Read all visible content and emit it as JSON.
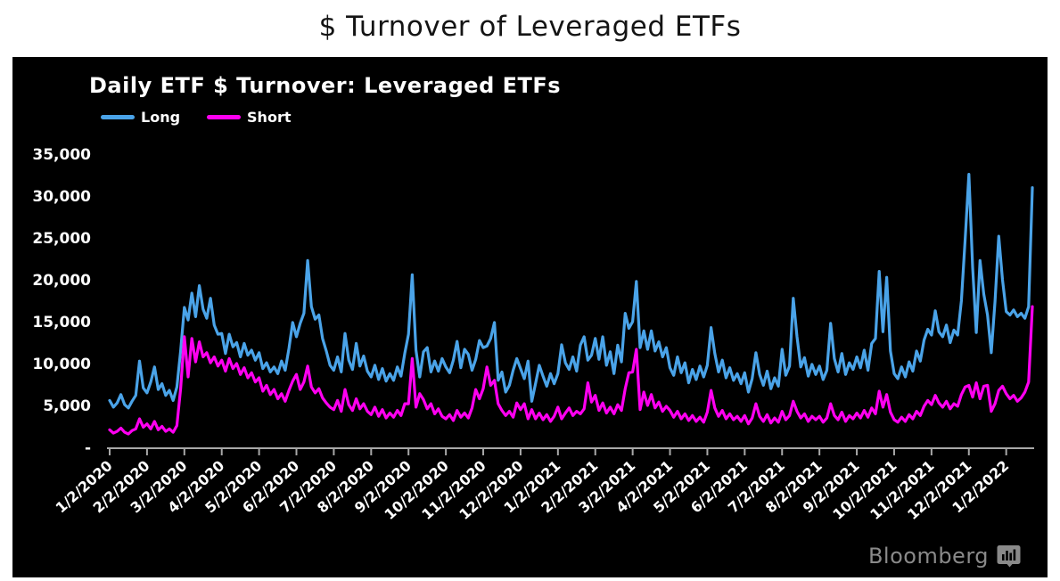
{
  "page": {
    "title": "$ Turnover of Leveraged ETFs"
  },
  "panel": {
    "title": "Daily ETF $ Turnover: Leveraged ETFs",
    "background_color": "#000000",
    "axis_color": "#a8a8a8",
    "label_color": "#ffffff",
    "brand": {
      "name": "Bloomberg",
      "icon": "bloomberg-chart-bubble-icon",
      "color": "#8a8a8a"
    }
  },
  "chart_data": {
    "type": "line",
    "title": "Daily ETF $ Turnover: Leveraged ETFs",
    "legend_position": "top-left",
    "grid": false,
    "ylim": [
      0,
      35000
    ],
    "y_ticks": {
      "values": [
        35000,
        30000,
        25000,
        20000,
        15000,
        10000,
        5000,
        0
      ],
      "labels": [
        "35,000",
        "30,000",
        "25,000",
        "20,000",
        "15,000",
        "10,000",
        "5,000",
        "-"
      ]
    },
    "x_tick_labels": [
      "1/2/2020",
      "2/2/2020",
      "3/2/2020",
      "4/2/2020",
      "5/2/2020",
      "6/2/2020",
      "7/2/2020",
      "8/2/2020",
      "9/2/2020",
      "10/2/2020",
      "11/2/2020",
      "12/2/2020",
      "1/2/2021",
      "2/2/2021",
      "3/2/2021",
      "4/2/2021",
      "5/2/2021",
      "6/2/2021",
      "7/2/2021",
      "8/2/2021",
      "9/2/2021",
      "10/2/2021",
      "11/2/2021",
      "12/2/2021",
      "1/2/2022"
    ],
    "points_per_tick": 10,
    "series": [
      {
        "name": "Long",
        "color": "#4aa3e8",
        "values": [
          5600,
          4800,
          5300,
          6300,
          5100,
          4700,
          5500,
          6200,
          10300,
          7100,
          6500,
          7800,
          9600,
          6900,
          7600,
          6200,
          6800,
          5600,
          7200,
          11500,
          16700,
          15200,
          18400,
          15600,
          19300,
          16500,
          15400,
          17800,
          14600,
          13500,
          13600,
          11200,
          13500,
          12000,
          12500,
          10800,
          12400,
          11000,
          11600,
          10400,
          11300,
          9400,
          10100,
          9000,
          9600,
          8800,
          10300,
          9200,
          11800,
          14900,
          13200,
          14800,
          16000,
          22300,
          16800,
          15300,
          15800,
          13000,
          11500,
          9800,
          9200,
          10800,
          9000,
          13600,
          10400,
          9300,
          12400,
          9700,
          10900,
          9100,
          8400,
          9800,
          8100,
          9400,
          7900,
          8800,
          8000,
          9600,
          8500,
          11200,
          13500,
          20600,
          11600,
          8400,
          11400,
          11900,
          9000,
          10300,
          9100,
          10600,
          9600,
          8900,
          10400,
          12650,
          9500,
          11700,
          11100,
          9200,
          10500,
          12750,
          11900,
          12100,
          13000,
          14900,
          8000,
          9000,
          6600,
          7400,
          9200,
          10600,
          9400,
          8200,
          10300,
          5500,
          7600,
          9800,
          8500,
          7300,
          8800,
          7600,
          8800,
          12250,
          10100,
          9300,
          10800,
          9100,
          12200,
          13200,
          10400,
          11000,
          13000,
          10500,
          13200,
          9800,
          11400,
          8800,
          12200,
          10200,
          16000,
          14200,
          15000,
          19800,
          11900,
          13900,
          11700,
          13900,
          11500,
          12600,
          10800,
          11900,
          9500,
          8600,
          10800,
          8900,
          10100,
          7700,
          9300,
          8100,
          9700,
          8400,
          9800,
          14300,
          11200,
          9000,
          10400,
          8300,
          9500,
          8000,
          8800,
          7600,
          8900,
          6600,
          8200,
          11300,
          8700,
          7400,
          9100,
          7000,
          8300,
          7300,
          11700,
          8600,
          9700,
          17800,
          13200,
          9600,
          10700,
          8500,
          9900,
          8700,
          9700,
          8100,
          9200,
          14800,
          10600,
          9000,
          11200,
          8700,
          10100,
          9300,
          10800,
          9500,
          11600,
          9200,
          12400,
          13000,
          21000,
          13800,
          20300,
          11500,
          8800,
          8200,
          9600,
          8400,
          10200,
          9100,
          11500,
          10300,
          12800,
          14100,
          13400,
          16300,
          13800,
          13200,
          14600,
          12500,
          14000,
          13400,
          17500,
          24800,
          32600,
          21500,
          13700,
          22300,
          18300,
          15800,
          11300,
          17400,
          25200,
          20000,
          16200,
          15800,
          16400,
          15600,
          16000,
          15400,
          16800,
          31000
        ]
      },
      {
        "name": "Short",
        "color": "#ff00f0",
        "values": [
          2100,
          1700,
          1900,
          2300,
          1800,
          1600,
          2000,
          2200,
          3400,
          2400,
          2800,
          2200,
          3100,
          2100,
          2500,
          1900,
          2200,
          1800,
          2600,
          7000,
          13200,
          8400,
          13000,
          10200,
          12600,
          10800,
          11300,
          10100,
          10800,
          9700,
          10400,
          9100,
          10600,
          9400,
          10000,
          8700,
          9500,
          8300,
          8900,
          7800,
          8300,
          6700,
          7400,
          6300,
          6900,
          5800,
          6400,
          5500,
          6800,
          7900,
          8700,
          6900,
          7800,
          9700,
          7200,
          6500,
          7000,
          5900,
          5300,
          4800,
          4500,
          5600,
          4300,
          6900,
          5100,
          4400,
          5800,
          4600,
          5200,
          4300,
          3900,
          4800,
          3700,
          4500,
          3500,
          4100,
          3600,
          4400,
          3800,
          5200,
          5200,
          10600,
          4800,
          6400,
          5700,
          4600,
          5200,
          4000,
          4600,
          3700,
          3400,
          3900,
          3200,
          4400,
          3600,
          4100,
          3500,
          4700,
          6900,
          5800,
          7000,
          9600,
          7400,
          8000,
          5200,
          4400,
          3800,
          4300,
          3600,
          5300,
          4500,
          5200,
          3400,
          4500,
          3400,
          4100,
          3300,
          3900,
          3100,
          3700,
          4800,
          3400,
          4100,
          4700,
          3800,
          4300,
          4000,
          4600,
          7700,
          5400,
          6200,
          4400,
          5300,
          4100,
          4800,
          4000,
          5100,
          4400,
          7000,
          8900,
          9000,
          11700,
          4500,
          6600,
          5000,
          6300,
          4700,
          5400,
          4300,
          4900,
          4400,
          3600,
          4300,
          3400,
          4000,
          3200,
          3800,
          3100,
          3600,
          3000,
          4200,
          6800,
          4700,
          3700,
          4400,
          3400,
          4000,
          3300,
          3700,
          3100,
          3800,
          2800,
          3500,
          5200,
          3700,
          3100,
          3900,
          2900,
          3500,
          3000,
          4300,
          3300,
          3800,
          5500,
          4300,
          3500,
          4000,
          3100,
          3700,
          3300,
          3700,
          3000,
          3500,
          5200,
          3800,
          3300,
          4200,
          3100,
          3800,
          3400,
          4100,
          3500,
          4400,
          3600,
          4700,
          4000,
          6700,
          4800,
          6300,
          4200,
          3300,
          3000,
          3600,
          3100,
          3900,
          3400,
          4300,
          3800,
          4900,
          5600,
          5100,
          6200,
          5300,
          4800,
          5500,
          4600,
          5200,
          4900,
          6300,
          7200,
          7400,
          6000,
          7700,
          5800,
          7300,
          7400,
          4300,
          5200,
          6800,
          7300,
          6400,
          5800,
          6200,
          5500,
          5900,
          6600,
          7800,
          16800
        ]
      }
    ]
  }
}
